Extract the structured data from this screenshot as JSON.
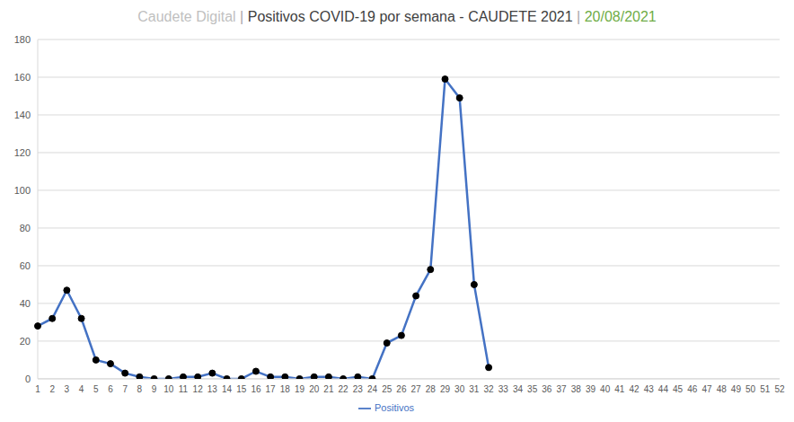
{
  "chart_data": {
    "type": "line",
    "title": "Caudete Digital | Positivos COVID-19 por semana - CAUDETE 2021 | 20/08/2021",
    "categories": [
      "1",
      "2",
      "3",
      "4",
      "5",
      "6",
      "7",
      "8",
      "9",
      "10",
      "11",
      "12",
      "13",
      "14",
      "15",
      "16",
      "17",
      "18",
      "19",
      "20",
      "21",
      "22",
      "23",
      "24",
      "25",
      "26",
      "27",
      "28",
      "29",
      "30",
      "31",
      "32",
      "33",
      "34",
      "35",
      "36",
      "37",
      "38",
      "39",
      "40",
      "41",
      "42",
      "43",
      "44",
      "45",
      "46",
      "47",
      "48",
      "49",
      "50",
      "51",
      "52"
    ],
    "series": [
      {
        "name": "Positivos",
        "color": "#4472c4",
        "marker": "circle",
        "values": [
          28,
          32,
          47,
          32,
          10,
          8,
          3,
          1,
          0,
          0,
          1,
          1,
          3,
          0,
          0,
          4,
          1,
          1,
          0,
          1,
          1,
          0,
          1,
          0,
          19,
          23,
          44,
          58,
          159,
          149,
          50,
          6,
          null,
          null,
          null,
          null,
          null,
          null,
          null,
          null,
          null,
          null,
          null,
          null,
          null,
          null,
          null,
          null,
          null,
          null,
          null,
          null
        ]
      }
    ],
    "ylim": [
      0,
      180
    ],
    "yticks": [
      0,
      20,
      40,
      60,
      80,
      100,
      120,
      140,
      160,
      180
    ],
    "grid": true,
    "legend": "bottom"
  }
}
